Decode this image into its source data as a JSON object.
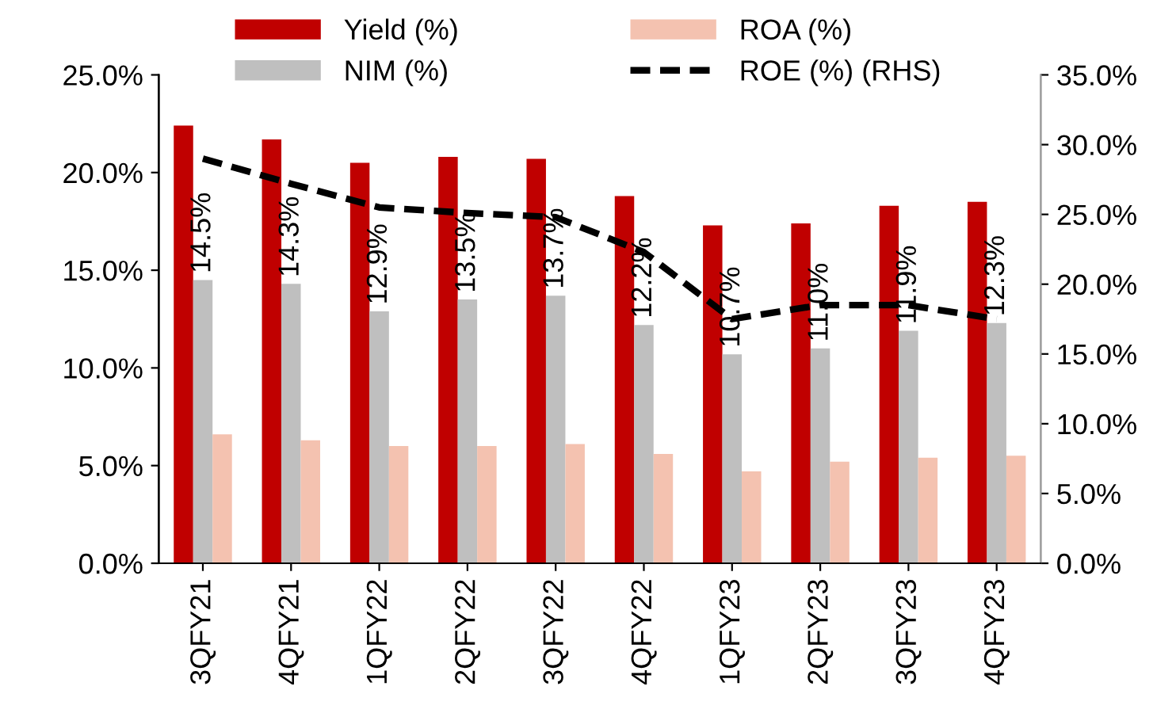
{
  "chart_data": {
    "type": "bar",
    "categories": [
      "3QFY21",
      "4QFY21",
      "1QFY22",
      "2QFY22",
      "3QFY22",
      "4QFY22",
      "1QFY23",
      "2QFY23",
      "3QFY23",
      "4QFY23"
    ],
    "series": [
      {
        "name": "Yield (%)",
        "color": "#c00000",
        "values": [
          22.4,
          21.7,
          20.5,
          20.8,
          20.7,
          18.8,
          17.3,
          17.4,
          18.3,
          18.5
        ]
      },
      {
        "name": "NIM (%)",
        "color": "#bfbfbf",
        "values": [
          14.5,
          14.3,
          12.9,
          13.5,
          13.7,
          12.2,
          10.7,
          11.0,
          11.9,
          12.3
        ],
        "value_labels": [
          "14.5%",
          "14.3%",
          "12.9%",
          "13.5%",
          "13.7%",
          "12.2%",
          "10.7%",
          "11.0%",
          "11.9%",
          "12.3%"
        ]
      },
      {
        "name": "ROA (%)",
        "color": "#f4c2b0",
        "values": [
          6.6,
          6.3,
          6.0,
          6.0,
          6.1,
          5.6,
          4.7,
          5.2,
          5.4,
          5.5
        ]
      },
      {
        "name": "ROE (%) (RHS)",
        "type": "line",
        "axis": "y2",
        "color": "#000000",
        "line_style": "dashed",
        "values": [
          29.0,
          27.2,
          25.5,
          25.1,
          24.8,
          22.3,
          17.5,
          18.5,
          18.5,
          17.5
        ]
      }
    ],
    "ylim": [
      0,
      25
    ],
    "yticks": [
      {
        "value": 0,
        "label": "0.0%"
      },
      {
        "value": 5,
        "label": "5.0%"
      },
      {
        "value": 10,
        "label": "10.0%"
      },
      {
        "value": 15,
        "label": "15.0%"
      },
      {
        "value": 20,
        "label": "20.0%"
      },
      {
        "value": 25,
        "label": "25.0%"
      }
    ],
    "y2lim": [
      0,
      35
    ],
    "y2ticks": [
      {
        "value": 0,
        "label": "0.0%"
      },
      {
        "value": 5,
        "label": "5.0%"
      },
      {
        "value": 10,
        "label": "10.0%"
      },
      {
        "value": 15,
        "label": "15.0%"
      },
      {
        "value": 20,
        "label": "20.0%"
      },
      {
        "value": 25,
        "label": "25.0%"
      },
      {
        "value": 30,
        "label": "30.0%"
      },
      {
        "value": 35,
        "label": "35.0%"
      }
    ],
    "legend": "top",
    "grid": false
  }
}
